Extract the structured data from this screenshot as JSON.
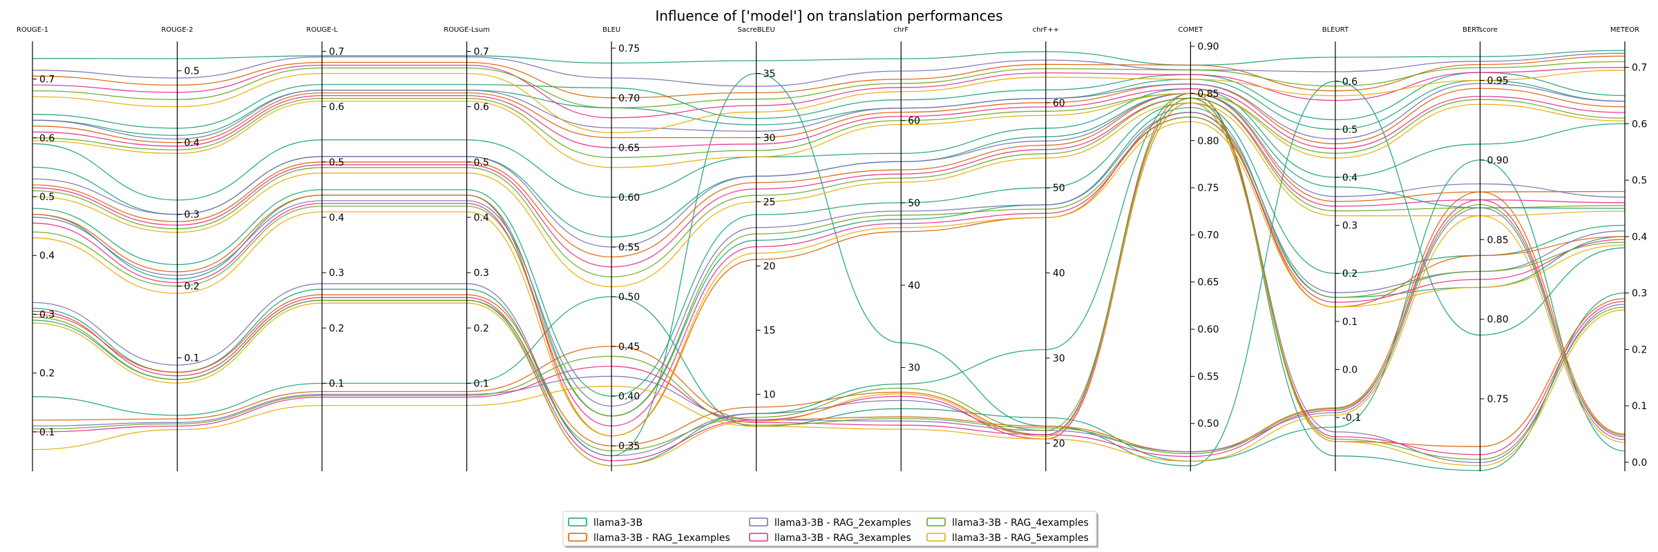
{
  "chart_data": {
    "type": "parallel-coordinates",
    "title": "Influence of ['model'] on translation performances",
    "legend": {
      "placement": "bottom-center",
      "entries": [
        {
          "name": "llama3-3B",
          "color": "#1b9e77"
        },
        {
          "name": "llama3-3B - RAG_1examples",
          "color": "#d95f02"
        },
        {
          "name": "llama3-3B - RAG_2examples",
          "color": "#7570b3"
        },
        {
          "name": "llama3-3B - RAG_3examples",
          "color": "#e7298a"
        },
        {
          "name": "llama3-3B - RAG_4examples",
          "color": "#66a61e"
        },
        {
          "name": "llama3-3B - RAG_5examples",
          "color": "#e6ab02"
        }
      ]
    },
    "axes": [
      {
        "name": "ROUGE-1",
        "range": [
          0.033,
          0.764
        ],
        "ticks": [
          0.1,
          0.2,
          0.3,
          0.4,
          0.5,
          0.6,
          0.7
        ],
        "tick_labels": [
          "0.1",
          "0.2",
          "0.3",
          "0.4",
          "0.5",
          "0.6",
          "0.7"
        ]
      },
      {
        "name": "ROUGE-2",
        "range": [
          -0.058,
          0.541
        ],
        "ticks": [
          0.1,
          0.2,
          0.3,
          0.4,
          0.5
        ],
        "tick_labels": [
          "0.1",
          "0.2",
          "0.3",
          "0.4",
          "0.5"
        ]
      },
      {
        "name": "ROUGE-L",
        "range": [
          -0.059,
          0.718
        ],
        "ticks": [
          0.1,
          0.2,
          0.3,
          0.4,
          0.5,
          0.6,
          0.7
        ],
        "tick_labels": [
          "0.1",
          "0.2",
          "0.3",
          "0.4",
          "0.5",
          "0.6",
          "0.7"
        ]
      },
      {
        "name": "ROUGE-Lsum",
        "range": [
          -0.059,
          0.718
        ],
        "ticks": [
          0.1,
          0.2,
          0.3,
          0.4,
          0.5,
          0.6,
          0.7
        ],
        "tick_labels": [
          "0.1",
          "0.2",
          "0.3",
          "0.4",
          "0.5",
          "0.6",
          "0.7"
        ]
      },
      {
        "name": "BLEU",
        "range": [
          0.3244,
          0.7568
        ],
        "ticks": [
          0.35,
          0.4,
          0.45,
          0.5,
          0.55,
          0.6,
          0.65,
          0.7,
          0.75
        ],
        "tick_labels": [
          "0.35",
          "0.40",
          "0.45",
          "0.50",
          "0.55",
          "0.60",
          "0.65",
          "0.70",
          "0.75"
        ]
      },
      {
        "name": "SacreBLEU",
        "range": [
          4.0,
          37.5
        ],
        "ticks": [
          10,
          15,
          20,
          25,
          30,
          35
        ],
        "tick_labels": [
          "10",
          "15",
          "20",
          "25",
          "30",
          "35"
        ]
      },
      {
        "name": "chrF",
        "range": [
          17.4,
          69.6
        ],
        "ticks": [
          30,
          40,
          50,
          60
        ],
        "tick_labels": [
          "30",
          "40",
          "50",
          "60"
        ]
      },
      {
        "name": "chrF++",
        "range": [
          16.7,
          67.2
        ],
        "ticks": [
          20,
          30,
          40,
          50,
          60
        ],
        "tick_labels": [
          "20",
          "30",
          "40",
          "50",
          "60"
        ]
      },
      {
        "name": "COMET",
        "range": [
          0.4493,
          0.9052
        ],
        "ticks": [
          0.5,
          0.55,
          0.6,
          0.65,
          0.7,
          0.75,
          0.8,
          0.85,
          0.9
        ],
        "tick_labels": [
          "0.50",
          "0.55",
          "0.60",
          "0.65",
          "0.70",
          "0.75",
          "0.80",
          "0.85",
          "0.90"
        ]
      },
      {
        "name": "BLEURT",
        "range": [
          -0.212,
          0.683
        ],
        "ticks": [
          -0.1,
          0.0,
          0.1,
          0.2,
          0.3,
          0.4,
          0.5,
          0.6
        ],
        "tick_labels": [
          "-0.1",
          "0.0",
          "0.1",
          "0.2",
          "0.3",
          "0.4",
          "0.5",
          "0.6"
        ]
      },
      {
        "name": "BERTscore",
        "range": [
          0.7045,
          0.9745
        ],
        "ticks": [
          0.75,
          0.8,
          0.85,
          0.9,
          0.95
        ],
        "tick_labels": [
          "0.75",
          "0.80",
          "0.85",
          "0.90",
          "0.95"
        ]
      },
      {
        "name": "METEOR",
        "range": [
          -0.016,
          0.746
        ],
        "ticks": [
          0.0,
          0.1,
          0.2,
          0.3,
          0.4,
          0.5,
          0.6,
          0.7
        ],
        "tick_labels": [
          "0.0",
          "0.1",
          "0.2",
          "0.3",
          "0.4",
          "0.5",
          "0.6",
          "0.7"
        ]
      }
    ],
    "series": [
      {
        "name": "llama3-3B",
        "color": "#1b9e77",
        "lines": [
          [
            0.735,
            0.517,
            0.692,
            0.692,
            0.735,
            36.0,
            67.5,
            66.0,
            0.88,
            0.65,
            0.965,
            0.73
          ],
          [
            0.64,
            0.42,
            0.64,
            0.64,
            0.71,
            31.5,
            62.5,
            61.5,
            0.87,
            0.52,
            0.955,
            0.65
          ],
          [
            0.63,
            0.41,
            0.63,
            0.63,
            0.69,
            31.0,
            61.5,
            60.5,
            0.865,
            0.5,
            0.95,
            0.64
          ],
          [
            0.59,
            0.32,
            0.54,
            0.54,
            0.6,
            28.5,
            56.0,
            57.0,
            0.855,
            0.4,
            0.91,
            0.6
          ],
          [
            0.55,
            0.3,
            0.51,
            0.51,
            0.56,
            27.0,
            55.0,
            56.0,
            0.85,
            0.38,
            0.87,
            0.45
          ],
          [
            0.48,
            0.23,
            0.45,
            0.45,
            0.4,
            24.0,
            50.0,
            50.0,
            0.84,
            0.2,
            0.84,
            0.42
          ],
          [
            0.47,
            0.21,
            0.44,
            0.44,
            0.38,
            22.0,
            48.0,
            48.0,
            0.835,
            0.15,
            0.82,
            0.4
          ],
          [
            0.31,
            0.08,
            0.27,
            0.27,
            0.34,
            35.0,
            33.0,
            22.0,
            0.455,
            0.6,
            0.79,
            0.38
          ],
          [
            0.29,
            0.07,
            0.25,
            0.25,
            0.33,
            8.5,
            28.0,
            31.0,
            0.85,
            -0.18,
            0.705,
            0.3
          ],
          [
            0.16,
            0.02,
            0.1,
            0.1,
            0.5,
            7.5,
            25.0,
            23.0,
            0.46,
            -0.12,
            0.9,
            0.02
          ]
        ]
      },
      {
        "name": "llama3-3B - RAG_1examples",
        "color": "#d95f02",
        "lines": [
          [
            0.705,
            0.48,
            0.68,
            0.68,
            0.7,
            33.5,
            65.0,
            64.5,
            0.88,
            0.58,
            0.96,
            0.72
          ],
          [
            0.62,
            0.4,
            0.625,
            0.625,
            0.66,
            30.0,
            61.0,
            60.0,
            0.86,
            0.47,
            0.945,
            0.63
          ],
          [
            0.52,
            0.29,
            0.5,
            0.5,
            0.54,
            26.5,
            54.0,
            55.0,
            0.85,
            0.35,
            0.88,
            0.48
          ],
          [
            0.47,
            0.22,
            0.44,
            0.44,
            0.36,
            20.5,
            46.5,
            46.5,
            0.83,
            0.13,
            0.84,
            0.4
          ],
          [
            0.3,
            0.08,
            0.26,
            0.26,
            0.35,
            9.0,
            27.0,
            21.0,
            0.85,
            -0.15,
            0.72,
            0.29
          ],
          [
            0.12,
            0.015,
            0.085,
            0.085,
            0.45,
            8.0,
            24.0,
            22.0,
            0.47,
            -0.08,
            0.88,
            0.05
          ]
        ]
      },
      {
        "name": "llama3-3B - RAG_2examples",
        "color": "#7570b3",
        "lines": [
          [
            0.715,
            0.49,
            0.69,
            0.69,
            0.72,
            34.0,
            66.0,
            65.0,
            0.875,
            0.62,
            0.962,
            0.725
          ],
          [
            0.63,
            0.405,
            0.63,
            0.63,
            0.67,
            30.5,
            61.5,
            60.5,
            0.86,
            0.48,
            0.948,
            0.64
          ],
          [
            0.53,
            0.3,
            0.51,
            0.51,
            0.55,
            27.0,
            55.0,
            55.5,
            0.85,
            0.36,
            0.885,
            0.47
          ],
          [
            0.465,
            0.215,
            0.43,
            0.43,
            0.39,
            23.0,
            49.0,
            48.0,
            0.83,
            0.16,
            0.83,
            0.41
          ],
          [
            0.32,
            0.09,
            0.28,
            0.28,
            0.34,
            8.5,
            26.0,
            21.0,
            0.845,
            -0.13,
            0.71,
            0.28
          ],
          [
            0.11,
            0.01,
            0.08,
            0.08,
            0.42,
            8.0,
            23.5,
            21.5,
            0.47,
            -0.09,
            0.87,
            0.04
          ]
        ]
      },
      {
        "name": "llama3-3B - RAG_3examples",
        "color": "#e7298a",
        "lines": [
          [
            0.69,
            0.47,
            0.675,
            0.675,
            0.68,
            32.5,
            64.0,
            63.5,
            0.87,
            0.56,
            0.955,
            0.7
          ],
          [
            0.61,
            0.395,
            0.62,
            0.62,
            0.65,
            29.5,
            60.5,
            59.5,
            0.855,
            0.46,
            0.94,
            0.62
          ],
          [
            0.515,
            0.285,
            0.495,
            0.495,
            0.53,
            26.0,
            53.5,
            54.5,
            0.845,
            0.34,
            0.875,
            0.46
          ],
          [
            0.455,
            0.205,
            0.425,
            0.425,
            0.37,
            21.5,
            47.5,
            47.0,
            0.825,
            0.14,
            0.825,
            0.395
          ],
          [
            0.305,
            0.075,
            0.255,
            0.255,
            0.335,
            8.0,
            26.5,
            20.5,
            0.84,
            -0.14,
            0.715,
            0.285
          ],
          [
            0.1,
            0.005,
            0.075,
            0.075,
            0.43,
            7.8,
            23.0,
            21.0,
            0.465,
            -0.085,
            0.875,
            0.045
          ]
        ]
      },
      {
        "name": "llama3-3B - RAG_4examples",
        "color": "#66a61e",
        "lines": [
          [
            0.68,
            0.46,
            0.67,
            0.67,
            0.69,
            33.0,
            64.5,
            64.0,
            0.875,
            0.59,
            0.958,
            0.71
          ],
          [
            0.6,
            0.39,
            0.615,
            0.615,
            0.64,
            29.0,
            60.0,
            59.0,
            0.85,
            0.45,
            0.938,
            0.61
          ],
          [
            0.51,
            0.28,
            0.49,
            0.49,
            0.52,
            25.5,
            53.0,
            54.0,
            0.845,
            0.33,
            0.87,
            0.455
          ],
          [
            0.44,
            0.2,
            0.42,
            0.42,
            0.38,
            22.5,
            48.5,
            47.5,
            0.825,
            0.15,
            0.83,
            0.39
          ],
          [
            0.295,
            0.07,
            0.25,
            0.25,
            0.345,
            8.2,
            27.5,
            21.5,
            0.845,
            -0.145,
            0.712,
            0.275
          ],
          [
            0.105,
            0.008,
            0.078,
            0.078,
            0.44,
            7.6,
            23.8,
            21.8,
            0.468,
            -0.082,
            0.872,
            0.048
          ]
        ]
      },
      {
        "name": "llama3-3B - RAG_5examples",
        "color": "#e6ab02",
        "lines": [
          [
            0.67,
            0.45,
            0.66,
            0.66,
            0.665,
            32.0,
            63.5,
            63.0,
            0.865,
            0.57,
            0.95,
            0.695
          ],
          [
            0.595,
            0.385,
            0.61,
            0.61,
            0.63,
            28.5,
            59.5,
            58.5,
            0.85,
            0.44,
            0.935,
            0.605
          ],
          [
            0.5,
            0.275,
            0.48,
            0.48,
            0.51,
            25.0,
            52.5,
            53.5,
            0.84,
            0.32,
            0.865,
            0.445
          ],
          [
            0.43,
            0.19,
            0.41,
            0.41,
            0.36,
            21.0,
            47.0,
            46.5,
            0.82,
            0.13,
            0.82,
            0.385
          ],
          [
            0.285,
            0.065,
            0.245,
            0.245,
            0.33,
            7.9,
            26.8,
            20.8,
            0.84,
            -0.15,
            0.708,
            0.27
          ],
          [
            0.07,
            0.0,
            0.06,
            0.06,
            0.41,
            7.5,
            22.5,
            20.5,
            0.46,
            -0.095,
            0.865,
            0.035
          ]
        ]
      }
    ]
  }
}
